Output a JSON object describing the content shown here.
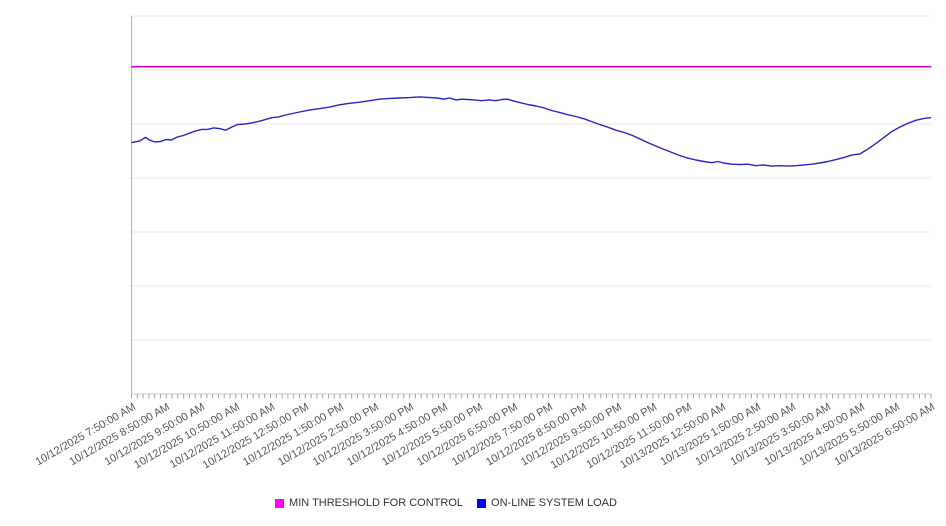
{
  "chart_data": {
    "type": "line",
    "title": "",
    "background_color": "#ffffff",
    "grid": "horizontal",
    "gridline_color": "#e7e7e7",
    "axis_line_color": "#b5b5b5",
    "x_axis": {
      "label_rotation_deg": -30,
      "label_color": "#565656",
      "range_minutes": [
        0,
        1380
      ],
      "minor_tick_interval_minutes": 10,
      "tick_labels": [
        "10/12/2025 7:50:00 AM",
        "10/12/2025 8:50:00 AM",
        "10/12/2025 9:50:00 AM",
        "10/12/2025 10:50:00 AM",
        "10/12/2025 11:50:00 AM",
        "10/12/2025 12:50:00 PM",
        "10/12/2025 1:50:00 PM",
        "10/12/2025 2:50:00 PM",
        "10/12/2025 3:50:00 PM",
        "10/12/2025 4:50:00 PM",
        "10/12/2025 5:50:00 PM",
        "10/12/2025 6:50:00 PM",
        "10/12/2025 7:50:00 PM",
        "10/12/2025 8:50:00 PM",
        "10/12/2025 9:50:00 PM",
        "10/12/2025 10:50:00 PM",
        "10/12/2025 11:50:00 PM",
        "10/13/2025 12:50:00 AM",
        "10/13/2025 1:50:00 AM",
        "10/13/2025 2:50:00 AM",
        "10/13/2025 3:50:00 AM",
        "10/13/2025 4:50:00 AM",
        "10/13/2025 5:50:00 AM",
        "10/13/2025 6:50:00 AM"
      ]
    },
    "y_axis": {
      "tick_labels_visible": false,
      "ylim": [
        0,
        100
      ],
      "gridline_divisions": 7
    },
    "series": [
      {
        "name": "MIN THRESHOLD FOR CONTROL",
        "style": "constant",
        "color": "#cc00cc",
        "value": 86.6
      },
      {
        "name": "ON-LINE SYSTEM LOAD",
        "style": "line",
        "color": "#2424c8",
        "points": [
          [
            0,
            66.5
          ],
          [
            14,
            66.9
          ],
          [
            24,
            67.9
          ],
          [
            31,
            67.2
          ],
          [
            40,
            66.7
          ],
          [
            50,
            66.8
          ],
          [
            59,
            67.3
          ],
          [
            69,
            67.2
          ],
          [
            79,
            68.0
          ],
          [
            90,
            68.4
          ],
          [
            100,
            69.0
          ],
          [
            111,
            69.6
          ],
          [
            121,
            70.0
          ],
          [
            131,
            70.0
          ],
          [
            142,
            70.4
          ],
          [
            152,
            70.2
          ],
          [
            162,
            69.8
          ],
          [
            173,
            70.6
          ],
          [
            183,
            71.3
          ],
          [
            195,
            71.4
          ],
          [
            207,
            71.7
          ],
          [
            219,
            72.1
          ],
          [
            231,
            72.6
          ],
          [
            242,
            73.1
          ],
          [
            254,
            73.3
          ],
          [
            266,
            73.8
          ],
          [
            278,
            74.2
          ],
          [
            290,
            74.6
          ],
          [
            307,
            75.1
          ],
          [
            325,
            75.5
          ],
          [
            342,
            75.9
          ],
          [
            359,
            76.5
          ],
          [
            376,
            76.9
          ],
          [
            394,
            77.2
          ],
          [
            411,
            77.6
          ],
          [
            428,
            78.0
          ],
          [
            446,
            78.2
          ],
          [
            463,
            78.3
          ],
          [
            480,
            78.4
          ],
          [
            497,
            78.6
          ],
          [
            515,
            78.4
          ],
          [
            528,
            78.3
          ],
          [
            539,
            78.0
          ],
          [
            549,
            78.3
          ],
          [
            560,
            77.8
          ],
          [
            570,
            78.0
          ],
          [
            580,
            77.9
          ],
          [
            592,
            77.8
          ],
          [
            604,
            77.6
          ],
          [
            617,
            77.8
          ],
          [
            629,
            77.6
          ],
          [
            639,
            77.9
          ],
          [
            649,
            78.0
          ],
          [
            660,
            77.5
          ],
          [
            670,
            77.1
          ],
          [
            684,
            76.6
          ],
          [
            698,
            76.2
          ],
          [
            712,
            75.7
          ],
          [
            725,
            75.0
          ],
          [
            739,
            74.5
          ],
          [
            753,
            73.9
          ],
          [
            767,
            73.4
          ],
          [
            781,
            72.8
          ],
          [
            794,
            72.1
          ],
          [
            808,
            71.3
          ],
          [
            822,
            70.6
          ],
          [
            836,
            69.8
          ],
          [
            850,
            69.2
          ],
          [
            864,
            68.4
          ],
          [
            877,
            67.5
          ],
          [
            891,
            66.5
          ],
          [
            905,
            65.6
          ],
          [
            919,
            64.7
          ],
          [
            933,
            63.9
          ],
          [
            946,
            63.1
          ],
          [
            960,
            62.4
          ],
          [
            974,
            61.9
          ],
          [
            988,
            61.5
          ],
          [
            1002,
            61.2
          ],
          [
            1012,
            61.5
          ],
          [
            1022,
            61.1
          ],
          [
            1036,
            60.8
          ],
          [
            1050,
            60.7
          ],
          [
            1064,
            60.8
          ],
          [
            1078,
            60.4
          ],
          [
            1091,
            60.6
          ],
          [
            1105,
            60.3
          ],
          [
            1119,
            60.4
          ],
          [
            1133,
            60.3
          ],
          [
            1147,
            60.4
          ],
          [
            1161,
            60.6
          ],
          [
            1174,
            60.8
          ],
          [
            1188,
            61.1
          ],
          [
            1202,
            61.5
          ],
          [
            1216,
            62.0
          ],
          [
            1230,
            62.6
          ],
          [
            1243,
            63.2
          ],
          [
            1257,
            63.5
          ],
          [
            1271,
            64.8
          ],
          [
            1285,
            66.3
          ],
          [
            1299,
            67.9
          ],
          [
            1312,
            69.4
          ],
          [
            1326,
            70.6
          ],
          [
            1340,
            71.6
          ],
          [
            1354,
            72.4
          ],
          [
            1368,
            72.9
          ],
          [
            1380,
            73.1
          ]
        ]
      }
    ],
    "legend": {
      "position": "bottom",
      "items": [
        {
          "label": "MIN THRESHOLD FOR CONTROL",
          "color": "#ff00ff"
        },
        {
          "label": "ON-LINE SYSTEM LOAD",
          "color": "#0000ff"
        }
      ]
    }
  }
}
